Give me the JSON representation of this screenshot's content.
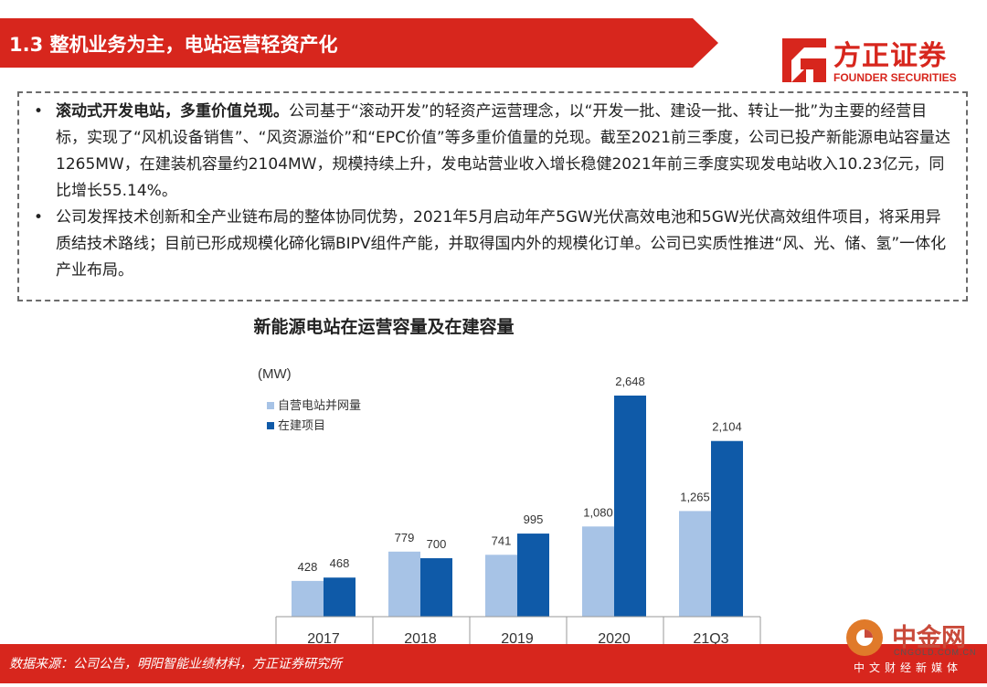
{
  "header": {
    "title": "1.3 整机业务为主，电站运营轻资产化",
    "color": "#d7261d"
  },
  "logo": {
    "name": "方正证券",
    "english": "FOUNDER SECURITIES"
  },
  "bullets": [
    {
      "bold": "滚动式开发电站，多重价值兑现。",
      "text": "公司基于“滚动开发”的轻资产运营理念，以“开发一批、建设一批、转让一批”为主要的经营目标，实现了“风机设备销售”、“风资源溢价”和“EPC价值”等多重价值量的兑现。截至2021前三季度，公司已投产新能源电站容量达1265MW，在建装机容量约2104MW，规模持续上升，发电站营业收入增长稳健2021年前三季度实现发电站收入10.23亿元，同比增长55.14%。"
    },
    {
      "bold": "",
      "text": "公司发挥技术创新和全产业链布局的整体协同优势，2021年5月启动年产5GW光伏高效电池和5GW光伏高效组件项目，将采用异质结技术路线；目前已形成规模化碲化镉BIPV组件产能，并取得国内外的规模化订单。公司已实质性推进“风、光、储、氢”一体化产业布局。"
    }
  ],
  "chart_data": {
    "type": "bar",
    "title": "新能源电站在运营容量及在建容量",
    "unit_label": "(MW)",
    "categories": [
      "2017",
      "2018",
      "2019",
      "2020",
      "21Q3"
    ],
    "series": [
      {
        "name": "自营电站并网量",
        "values": [
          428,
          779,
          741,
          1080,
          1265
        ],
        "labels": [
          "428",
          "779",
          "741",
          "1,080",
          "1,265"
        ],
        "color": "#a7c3e6"
      },
      {
        "name": "在建项目",
        "values": [
          468,
          700,
          995,
          2648,
          2104
        ],
        "labels": [
          "468",
          "700",
          "995",
          "2,648",
          "2,104"
        ],
        "color": "#0f5aa8"
      }
    ],
    "ylim": [
      0,
      2648
    ],
    "legend": "top-left",
    "grid": false
  },
  "footer": {
    "source": "数据来源：公司公告，明阳智能业绩材料，方正证券研究所",
    "color": "#d7261d"
  },
  "watermark": {
    "name": "中金网",
    "url": "CNGOLD.COM.CN",
    "tagline": "中文财经新媒体"
  }
}
